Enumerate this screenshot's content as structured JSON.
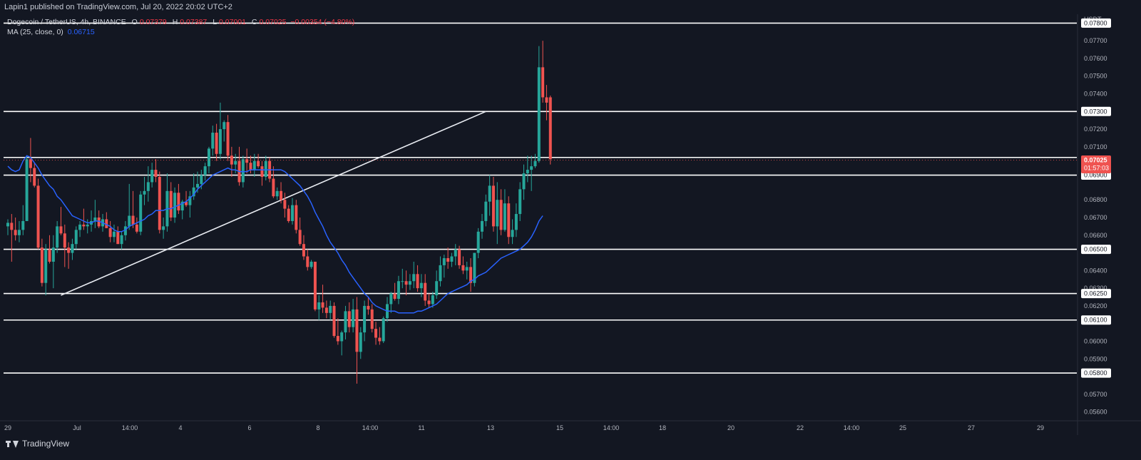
{
  "header": {
    "published_text": "Lapin1 published on TradingView.com, Jul 20, 2022 20:02 UTC+2"
  },
  "legend": {
    "symbol": "Dogecoin / TetherUS, 4h, BINANCE",
    "open_label": "O",
    "open": "0.07379",
    "high_label": "H",
    "high": "0.07387",
    "low_label": "L",
    "low": "0.07001",
    "close_label": "C",
    "close": "0.07025",
    "change": "−0.00354 (−4.80%)",
    "ma_label": "MA (25, close, 0)",
    "ma_value": "0.06715"
  },
  "footer": {
    "logo_text": "TradingView"
  },
  "colors": {
    "background": "#131722",
    "up": "#26a69a",
    "down": "#ef5350",
    "ma": "#2962ff",
    "level": "#ffffff"
  },
  "chart_data": {
    "type": "candlestick",
    "currency": "USDT",
    "ylim": [
      0.0555,
      0.0785
    ],
    "y_ticks": [
      "0.07700",
      "0.07600",
      "0.07500",
      "0.07400",
      "0.07200",
      "0.07100",
      "0.06800",
      "0.06700",
      "0.06600",
      "0.06400",
      "0.06300",
      "0.06200",
      "0.06000",
      "0.05900",
      "0.05700",
      "0.05600"
    ],
    "x_ticks": [
      "29",
      "Jul",
      "14:00",
      "4",
      "6",
      "8",
      "14:00",
      "11",
      "13",
      "15",
      "14:00",
      "18",
      "20",
      "22",
      "14:00",
      "25",
      "27",
      "29"
    ],
    "horizontal_levels": [
      {
        "price": 0.078,
        "label": "0.07800"
      },
      {
        "price": 0.073,
        "label": "0.07300"
      },
      {
        "price": 0.0704,
        "label": ""
      },
      {
        "price": 0.0694,
        "label": "0.06900"
      },
      {
        "price": 0.0652,
        "label": "0.06500"
      },
      {
        "price": 0.0627,
        "label": "0.06250"
      },
      {
        "price": 0.0612,
        "label": "0.06100"
      },
      {
        "price": 0.0582,
        "label": "0.05800"
      }
    ],
    "level_700": "0.07000",
    "last_price": {
      "value": 0.07025,
      "label": "0.07025",
      "countdown": "01:57:03"
    },
    "trendline": {
      "start": {
        "bar": 14,
        "price": 0.0626
      },
      "end": {
        "bar": 126,
        "price": 0.073
      }
    },
    "candles": [
      [
        0.0665,
        0.0669,
        0.066,
        0.0667
      ],
      [
        0.0667,
        0.0672,
        0.0645,
        0.0663
      ],
      [
        0.0663,
        0.067,
        0.0657,
        0.066
      ],
      [
        0.066,
        0.0668,
        0.0656,
        0.0663
      ],
      [
        0.0663,
        0.0677,
        0.066,
        0.0668
      ],
      [
        0.0668,
        0.0705,
        0.0668,
        0.0703
      ],
      [
        0.0703,
        0.0715,
        0.069,
        0.0698
      ],
      [
        0.0698,
        0.0701,
        0.0687,
        0.0688
      ],
      [
        0.0688,
        0.0692,
        0.0652,
        0.0653
      ],
      [
        0.0653,
        0.0658,
        0.0631,
        0.0633
      ],
      [
        0.0633,
        0.0655,
        0.0626,
        0.0652
      ],
      [
        0.0652,
        0.066,
        0.0644,
        0.0645
      ],
      [
        0.0645,
        0.066,
        0.063,
        0.0653
      ],
      [
        0.0653,
        0.0668,
        0.065,
        0.0665
      ],
      [
        0.0665,
        0.0676,
        0.066,
        0.0661
      ],
      [
        0.0661,
        0.0666,
        0.0642,
        0.0653
      ],
      [
        0.0653,
        0.0656,
        0.0641,
        0.065
      ],
      [
        0.065,
        0.0658,
        0.0646,
        0.0655
      ],
      [
        0.0655,
        0.0665,
        0.0652,
        0.0663
      ],
      [
        0.0663,
        0.0668,
        0.0659,
        0.0666
      ],
      [
        0.0666,
        0.0675,
        0.0663,
        0.0665
      ],
      [
        0.0665,
        0.0669,
        0.0661,
        0.0666
      ],
      [
        0.0666,
        0.0674,
        0.0662,
        0.0668
      ],
      [
        0.0668,
        0.068,
        0.0664,
        0.067
      ],
      [
        0.067,
        0.0674,
        0.0664,
        0.0665
      ],
      [
        0.0665,
        0.0672,
        0.0662,
        0.0669
      ],
      [
        0.0669,
        0.0673,
        0.0664,
        0.0664
      ],
      [
        0.0664,
        0.0668,
        0.0656,
        0.0659
      ],
      [
        0.0659,
        0.0666,
        0.0656,
        0.0662
      ],
      [
        0.0662,
        0.0665,
        0.0655,
        0.0655
      ],
      [
        0.0655,
        0.0662,
        0.0652,
        0.066
      ],
      [
        0.066,
        0.0668,
        0.0657,
        0.0665
      ],
      [
        0.0665,
        0.0689,
        0.0663,
        0.0671
      ],
      [
        0.0671,
        0.0685,
        0.0664,
        0.0666
      ],
      [
        0.0666,
        0.067,
        0.0661,
        0.0662
      ],
      [
        0.0662,
        0.0685,
        0.066,
        0.0683
      ],
      [
        0.0683,
        0.0693,
        0.0677,
        0.0685
      ],
      [
        0.0685,
        0.0699,
        0.0679,
        0.069
      ],
      [
        0.069,
        0.0701,
        0.0687,
        0.0697
      ],
      [
        0.0697,
        0.0703,
        0.069,
        0.0693
      ],
      [
        0.0693,
        0.0696,
        0.0661,
        0.0663
      ],
      [
        0.0663,
        0.067,
        0.0658,
        0.0665
      ],
      [
        0.0665,
        0.0695,
        0.0662,
        0.0685
      ],
      [
        0.0685,
        0.069,
        0.0668,
        0.067
      ],
      [
        0.067,
        0.0687,
        0.0667,
        0.0684
      ],
      [
        0.0684,
        0.0689,
        0.0672,
        0.0674
      ],
      [
        0.0674,
        0.068,
        0.0669,
        0.0679
      ],
      [
        0.0679,
        0.0685,
        0.0676,
        0.0677
      ],
      [
        0.0677,
        0.0685,
        0.067,
        0.0682
      ],
      [
        0.0682,
        0.0695,
        0.068,
        0.0687
      ],
      [
        0.0687,
        0.0696,
        0.0684,
        0.0689
      ],
      [
        0.0689,
        0.0697,
        0.0686,
        0.0694
      ],
      [
        0.0694,
        0.0701,
        0.0691,
        0.0699
      ],
      [
        0.0699,
        0.071,
        0.0695,
        0.0709
      ],
      [
        0.0709,
        0.0722,
        0.0705,
        0.0718
      ],
      [
        0.0718,
        0.0723,
        0.0702,
        0.0706
      ],
      [
        0.0706,
        0.0735,
        0.0703,
        0.072
      ],
      [
        0.072,
        0.0725,
        0.0713,
        0.0724
      ],
      [
        0.0724,
        0.0728,
        0.0702,
        0.0705
      ],
      [
        0.0705,
        0.071,
        0.0693,
        0.07
      ],
      [
        0.07,
        0.0706,
        0.0695,
        0.0702
      ],
      [
        0.0702,
        0.071,
        0.0688,
        0.069
      ],
      [
        0.069,
        0.0705,
        0.0687,
        0.0703
      ],
      [
        0.0703,
        0.0709,
        0.0695,
        0.0701
      ],
      [
        0.0701,
        0.0705,
        0.0695,
        0.0697
      ],
      [
        0.0697,
        0.0706,
        0.0693,
        0.0702
      ],
      [
        0.0702,
        0.0706,
        0.0698,
        0.0699
      ],
      [
        0.0699,
        0.0702,
        0.0688,
        0.0693
      ],
      [
        0.0693,
        0.0705,
        0.0691,
        0.0702
      ],
      [
        0.0702,
        0.0704,
        0.069,
        0.0692
      ],
      [
        0.0692,
        0.0699,
        0.0681,
        0.0682
      ],
      [
        0.0682,
        0.0687,
        0.068,
        0.0685
      ],
      [
        0.0685,
        0.069,
        0.0678,
        0.068
      ],
      [
        0.068,
        0.0684,
        0.067,
        0.0675
      ],
      [
        0.0675,
        0.0677,
        0.0667,
        0.0668
      ],
      [
        0.0668,
        0.0681,
        0.0666,
        0.0677
      ],
      [
        0.0677,
        0.068,
        0.0661,
        0.0663
      ],
      [
        0.0663,
        0.067,
        0.0654,
        0.0655
      ],
      [
        0.0655,
        0.066,
        0.0646,
        0.0648
      ],
      [
        0.0648,
        0.0652,
        0.064,
        0.0642
      ],
      [
        0.0642,
        0.0646,
        0.0641,
        0.0645
      ],
      [
        0.0645,
        0.0645,
        0.0617,
        0.0618
      ],
      [
        0.0618,
        0.0626,
        0.0612,
        0.0622
      ],
      [
        0.0622,
        0.0632,
        0.0616,
        0.0619
      ],
      [
        0.0619,
        0.0623,
        0.0613,
        0.0616
      ],
      [
        0.0616,
        0.0623,
        0.0612,
        0.062
      ],
      [
        0.062,
        0.0622,
        0.0602,
        0.0603
      ],
      [
        0.0603,
        0.0613,
        0.0598,
        0.06
      ],
      [
        0.06,
        0.0606,
        0.0592,
        0.0605
      ],
      [
        0.0605,
        0.062,
        0.0601,
        0.0617
      ],
      [
        0.0617,
        0.0622,
        0.0605,
        0.0608
      ],
      [
        0.0608,
        0.0624,
        0.0605,
        0.0618
      ],
      [
        0.0618,
        0.0625,
        0.0576,
        0.0594
      ],
      [
        0.0594,
        0.0608,
        0.059,
        0.0605
      ],
      [
        0.0605,
        0.0623,
        0.06,
        0.062
      ],
      [
        0.062,
        0.0625,
        0.0615,
        0.0618
      ],
      [
        0.0618,
        0.0621,
        0.0605,
        0.0607
      ],
      [
        0.0607,
        0.0611,
        0.0598,
        0.0602
      ],
      [
        0.0602,
        0.0608,
        0.0598,
        0.06
      ],
      [
        0.06,
        0.0614,
        0.0599,
        0.0613
      ],
      [
        0.0613,
        0.0625,
        0.0611,
        0.0621
      ],
      [
        0.0621,
        0.0628,
        0.0616,
        0.0627
      ],
      [
        0.0627,
        0.0633,
        0.0623,
        0.0624
      ],
      [
        0.0624,
        0.0637,
        0.0621,
        0.0634
      ],
      [
        0.0634,
        0.0641,
        0.063,
        0.0634
      ],
      [
        0.0634,
        0.064,
        0.0626,
        0.0632
      ],
      [
        0.0632,
        0.0638,
        0.0629,
        0.0634
      ],
      [
        0.0634,
        0.0645,
        0.063,
        0.0638
      ],
      [
        0.0638,
        0.0643,
        0.0628,
        0.063
      ],
      [
        0.063,
        0.0638,
        0.0625,
        0.0633
      ],
      [
        0.0633,
        0.0638,
        0.062,
        0.0623
      ],
      [
        0.0623,
        0.0627,
        0.0619,
        0.0621
      ],
      [
        0.0621,
        0.0628,
        0.0619,
        0.0626
      ],
      [
        0.0626,
        0.064,
        0.0624,
        0.0634
      ],
      [
        0.0634,
        0.0648,
        0.0631,
        0.0643
      ],
      [
        0.0643,
        0.0649,
        0.0636,
        0.0647
      ],
      [
        0.0647,
        0.0653,
        0.0641,
        0.0645
      ],
      [
        0.0645,
        0.065,
        0.0642,
        0.0648
      ],
      [
        0.0648,
        0.0655,
        0.0643,
        0.0652
      ],
      [
        0.0652,
        0.0654,
        0.0641,
        0.0643
      ],
      [
        0.0643,
        0.0648,
        0.0638,
        0.064
      ],
      [
        0.064,
        0.0645,
        0.0635,
        0.0642
      ],
      [
        0.0642,
        0.0647,
        0.0628,
        0.0633
      ],
      [
        0.0633,
        0.065,
        0.0631,
        0.065
      ],
      [
        0.065,
        0.0664,
        0.0647,
        0.0662
      ],
      [
        0.0662,
        0.0672,
        0.0658,
        0.0668
      ],
      [
        0.0668,
        0.0683,
        0.0665,
        0.0679
      ],
      [
        0.0679,
        0.0694,
        0.0671,
        0.0688
      ],
      [
        0.0688,
        0.0693,
        0.0662,
        0.0665
      ],
      [
        0.0665,
        0.069,
        0.0655,
        0.068
      ],
      [
        0.068,
        0.0686,
        0.066,
        0.0663
      ],
      [
        0.0663,
        0.0686,
        0.0662,
        0.0678
      ],
      [
        0.0678,
        0.0682,
        0.0655,
        0.0659
      ],
      [
        0.0659,
        0.0669,
        0.0655,
        0.0663
      ],
      [
        0.0663,
        0.0678,
        0.0659,
        0.0672
      ],
      [
        0.0672,
        0.069,
        0.0668,
        0.0686
      ],
      [
        0.0686,
        0.07,
        0.068,
        0.0695
      ],
      [
        0.0695,
        0.0705,
        0.069,
        0.0697
      ],
      [
        0.0697,
        0.0705,
        0.0685,
        0.0699
      ],
      [
        0.0699,
        0.0706,
        0.0698,
        0.0702
      ],
      [
        0.0702,
        0.0767,
        0.0701,
        0.0755
      ],
      [
        0.0755,
        0.077,
        0.0735,
        0.0738
      ],
      [
        0.0738,
        0.0745,
        0.0725,
        0.0735
      ],
      [
        0.0738,
        0.0739,
        0.07,
        0.0703
      ]
    ],
    "ma": [
      0.0699,
      0.0697,
      0.0696,
      0.0697,
      0.0702,
      0.0705,
      0.0704,
      0.0701,
      0.0698,
      0.0694,
      0.0691,
      0.0688,
      0.0686,
      0.0682,
      0.068,
      0.0677,
      0.0674,
      0.0671,
      0.067,
      0.0669,
      0.0668,
      0.0667,
      0.0667,
      0.0668,
      0.0668,
      0.0667,
      0.0666,
      0.0665,
      0.0663,
      0.0662,
      0.0662,
      0.0663,
      0.0665,
      0.0666,
      0.0667,
      0.0668,
      0.0669,
      0.0671,
      0.0672,
      0.0674,
      0.0674,
      0.0674,
      0.0675,
      0.0675,
      0.0676,
      0.0677,
      0.0678,
      0.0679,
      0.0681,
      0.0683,
      0.0686,
      0.0688,
      0.069,
      0.0692,
      0.0694,
      0.0695,
      0.0696,
      0.0697,
      0.0698,
      0.0697,
      0.0697,
      0.0696,
      0.0696,
      0.0696,
      0.0697,
      0.0697,
      0.0697,
      0.0697,
      0.0697,
      0.0697,
      0.0697,
      0.0697,
      0.0697,
      0.0696,
      0.0694,
      0.0692,
      0.069,
      0.0688,
      0.0685,
      0.0682,
      0.0678,
      0.0673,
      0.0669,
      0.0665,
      0.066,
      0.0656,
      0.0653,
      0.065,
      0.0646,
      0.0643,
      0.0639,
      0.0636,
      0.0633,
      0.063,
      0.0627,
      0.0625,
      0.0622,
      0.062,
      0.0619,
      0.0618,
      0.0617,
      0.0617,
      0.0617,
      0.0616,
      0.0616,
      0.0616,
      0.0616,
      0.0616,
      0.0617,
      0.0617,
      0.0618,
      0.0619,
      0.062,
      0.0621,
      0.0623,
      0.0625,
      0.0627,
      0.0628,
      0.0629,
      0.063,
      0.0631,
      0.0632,
      0.0634,
      0.0635,
      0.0637,
      0.0638,
      0.0639,
      0.0641,
      0.0643,
      0.0645,
      0.0647,
      0.0648,
      0.0649,
      0.065,
      0.0651,
      0.0652,
      0.0654,
      0.0656,
      0.0659,
      0.0663,
      0.0668,
      0.0671
    ]
  }
}
